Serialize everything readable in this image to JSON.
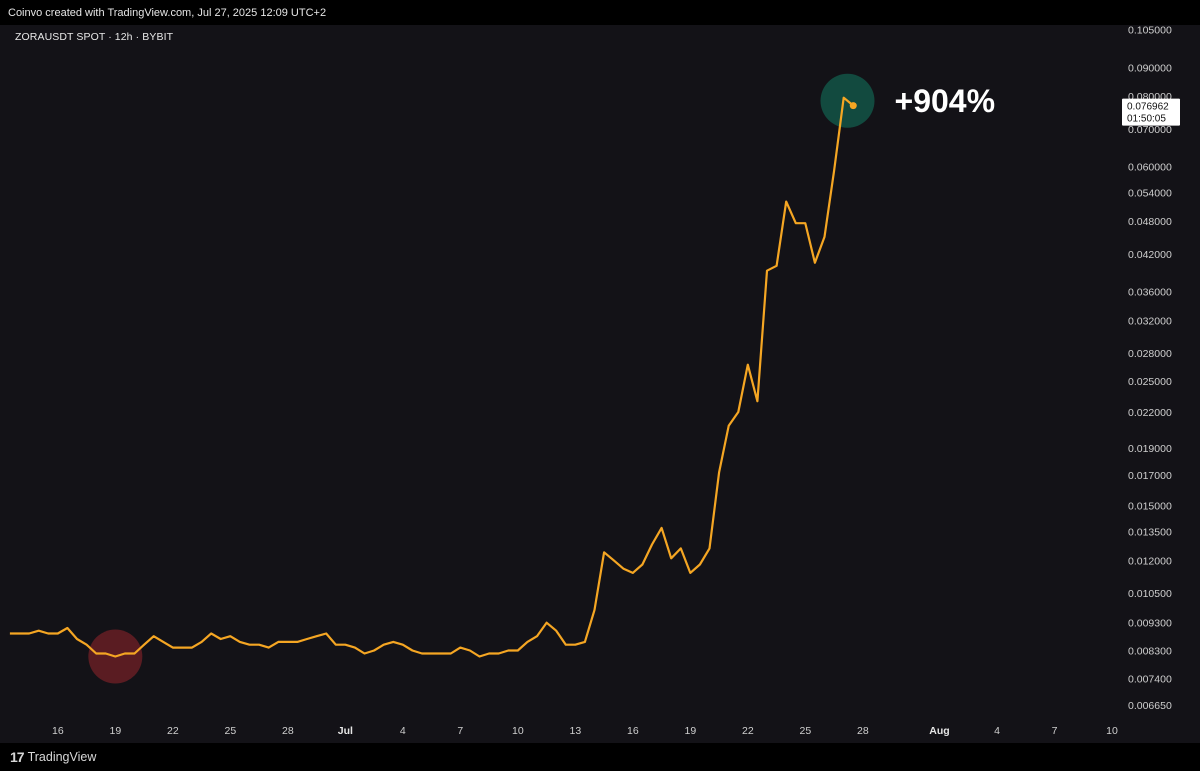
{
  "header": {
    "credit": "Coinvo created with TradingView.com, Jul 27, 2025 12:09 UTC+2"
  },
  "footer": {
    "brand": "TradingView",
    "brand_mark": "17"
  },
  "chart_data": {
    "type": "line",
    "title": "ZORAUSDT SPOT · 12h · BYBIT",
    "scale": "log",
    "ylim": [
      0.0063,
      0.107
    ],
    "y_ticks": [
      "0.105000",
      "0.090000",
      "0.080000",
      "0.070000",
      "0.060000",
      "0.054000",
      "0.048000",
      "0.042000",
      "0.036000",
      "0.032000",
      "0.028000",
      "0.025000",
      "0.022000",
      "0.019000",
      "0.017000",
      "0.015000",
      "0.013500",
      "0.012000",
      "0.010500",
      "0.009300",
      "0.008300",
      "0.007400",
      "0.006650"
    ],
    "x_ticks": [
      {
        "label": "16",
        "day": 16,
        "bold": false
      },
      {
        "label": "19",
        "day": 19,
        "bold": false
      },
      {
        "label": "22",
        "day": 22,
        "bold": false
      },
      {
        "label": "25",
        "day": 25,
        "bold": false
      },
      {
        "label": "28",
        "day": 28,
        "bold": false
      },
      {
        "label": "Jul",
        "day": 31,
        "bold": true
      },
      {
        "label": "4",
        "day": 34,
        "bold": false
      },
      {
        "label": "7",
        "day": 37,
        "bold": false
      },
      {
        "label": "10",
        "day": 40,
        "bold": false
      },
      {
        "label": "13",
        "day": 43,
        "bold": false
      },
      {
        "label": "16",
        "day": 46,
        "bold": false
      },
      {
        "label": "19",
        "day": 49,
        "bold": false
      },
      {
        "label": "22",
        "day": 52,
        "bold": false
      },
      {
        "label": "25",
        "day": 55,
        "bold": false
      },
      {
        "label": "28",
        "day": 58,
        "bold": false
      },
      {
        "label": "Aug",
        "day": 62,
        "bold": true
      },
      {
        "label": "4",
        "day": 65,
        "bold": false
      },
      {
        "label": "7",
        "day": 68,
        "bold": false
      },
      {
        "label": "10",
        "day": 71,
        "bold": false
      }
    ],
    "x_domain": [
      13.4,
      71
    ],
    "series": [
      {
        "color": "#f5a623",
        "points": [
          [
            13.5,
            0.0089
          ],
          [
            14,
            0.0089
          ],
          [
            14.5,
            0.0089
          ],
          [
            15,
            0.009
          ],
          [
            15.5,
            0.0089
          ],
          [
            16,
            0.0089
          ],
          [
            16.5,
            0.0091
          ],
          [
            17,
            0.0087
          ],
          [
            17.5,
            0.0085
          ],
          [
            18,
            0.0082
          ],
          [
            18.5,
            0.0082
          ],
          [
            19,
            0.0081
          ],
          [
            19.5,
            0.0082
          ],
          [
            20,
            0.0082
          ],
          [
            20.5,
            0.0085
          ],
          [
            21,
            0.0088
          ],
          [
            21.5,
            0.0086
          ],
          [
            22,
            0.0084
          ],
          [
            22.5,
            0.0084
          ],
          [
            23,
            0.0084
          ],
          [
            23.5,
            0.0086
          ],
          [
            24,
            0.0089
          ],
          [
            24.5,
            0.0087
          ],
          [
            25,
            0.0088
          ],
          [
            25.5,
            0.0086
          ],
          [
            26,
            0.0085
          ],
          [
            26.5,
            0.0085
          ],
          [
            27,
            0.0084
          ],
          [
            27.5,
            0.0086
          ],
          [
            28,
            0.0086
          ],
          [
            28.5,
            0.0086
          ],
          [
            29,
            0.0087
          ],
          [
            29.5,
            0.0088
          ],
          [
            30,
            0.0089
          ],
          [
            30.5,
            0.0085
          ],
          [
            31,
            0.0085
          ],
          [
            31.5,
            0.0084
          ],
          [
            32,
            0.0082
          ],
          [
            32.5,
            0.0083
          ],
          [
            33,
            0.0085
          ],
          [
            33.5,
            0.0086
          ],
          [
            34,
            0.0085
          ],
          [
            34.5,
            0.0083
          ],
          [
            35,
            0.0082
          ],
          [
            35.5,
            0.0082
          ],
          [
            36,
            0.0082
          ],
          [
            36.5,
            0.0082
          ],
          [
            37,
            0.0084
          ],
          [
            37.5,
            0.0083
          ],
          [
            38,
            0.0081
          ],
          [
            38.5,
            0.0082
          ],
          [
            39,
            0.0082
          ],
          [
            39.5,
            0.0083
          ],
          [
            40,
            0.0083
          ],
          [
            40.5,
            0.0086
          ],
          [
            41,
            0.0088
          ],
          [
            41.5,
            0.0093
          ],
          [
            42,
            0.009
          ],
          [
            42.5,
            0.0085
          ],
          [
            43,
            0.0085
          ],
          [
            43.5,
            0.0086
          ],
          [
            44,
            0.0098
          ],
          [
            44.5,
            0.0124
          ],
          [
            45,
            0.012
          ],
          [
            45.5,
            0.0116
          ],
          [
            46,
            0.0114
          ],
          [
            46.5,
            0.0118
          ],
          [
            47,
            0.0128
          ],
          [
            47.5,
            0.0137
          ],
          [
            48,
            0.0121
          ],
          [
            48.5,
            0.0126
          ],
          [
            49,
            0.0114
          ],
          [
            49.5,
            0.0118
          ],
          [
            50,
            0.0126
          ],
          [
            50.5,
            0.0172
          ],
          [
            51,
            0.0208
          ],
          [
            51.5,
            0.022
          ],
          [
            52,
            0.0267
          ],
          [
            52.5,
            0.023
          ],
          [
            53,
            0.0392
          ],
          [
            53.5,
            0.04
          ],
          [
            54,
            0.052
          ],
          [
            54.5,
            0.0476
          ],
          [
            55,
            0.0476
          ],
          [
            55.5,
            0.0405
          ],
          [
            56,
            0.045
          ],
          [
            56.5,
            0.059
          ],
          [
            57,
            0.0795
          ],
          [
            57.5,
            0.07696
          ]
        ]
      }
    ],
    "last_price": "0.076962",
    "countdown": "01:50:05",
    "annotation": "+904%",
    "low_marker": {
      "x": 19,
      "y": 0.0081
    },
    "high_marker": {
      "x": 57.2,
      "y": 0.0785
    },
    "colors": {
      "line": "#f5a623",
      "background": "#131217",
      "low_highlight": "#5a1c22",
      "high_highlight": "#124a3f"
    }
  }
}
